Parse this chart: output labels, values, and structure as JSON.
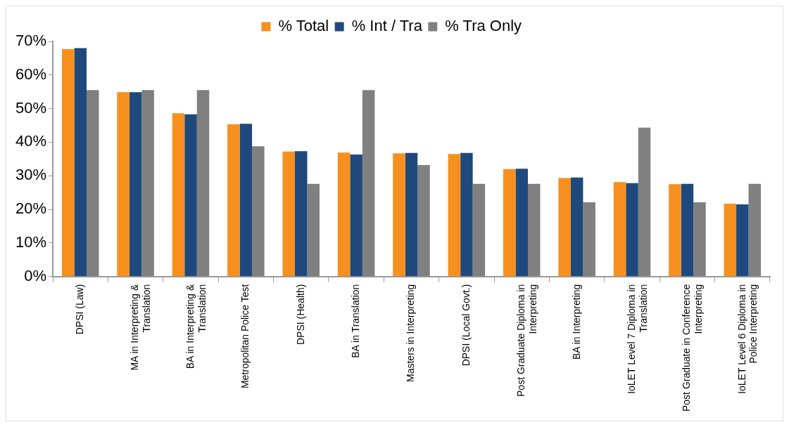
{
  "chart_data": {
    "type": "bar",
    "categories": [
      "DPSI (Law)",
      "MA in Interpreting & Translation",
      "BA in Interpreting & Translation",
      "Metropolitan Police Test",
      "DPSI (Health)",
      "BA in Translation",
      "Masters in Interpreting",
      "DPSI (Local Govt.)",
      "Post Graduate Diploma in Interpreting",
      "BA in Interpreting",
      "IoLET Level 7 Diploma in Translation",
      "Post Graduate in Conference Interpreting",
      "IoLET Level 6 Diploma in Police Interpreting"
    ],
    "series": [
      {
        "name": "% Total",
        "color": "#f7901e",
        "values": [
          67.7,
          54.9,
          48.6,
          45.3,
          37.2,
          36.9,
          36.7,
          36.5,
          32.0,
          29.3,
          28.1,
          27.5,
          21.7
        ]
      },
      {
        "name": "% Int / Tra",
        "color": "#1f497d",
        "values": [
          68.0,
          54.9,
          48.3,
          45.5,
          37.3,
          36.3,
          36.8,
          36.8,
          32.1,
          29.5,
          27.8,
          27.6,
          21.5
        ]
      },
      {
        "name": "% Tra Only",
        "color": "#808080",
        "values": [
          55.5,
          55.5,
          55.5,
          38.8,
          27.6,
          55.5,
          33.2,
          27.6,
          27.6,
          22.1,
          44.3,
          22.1,
          27.6
        ]
      }
    ],
    "ylim": [
      0,
      70
    ],
    "yticks": [
      {
        "value": 0,
        "label": "0%"
      },
      {
        "value": 10,
        "label": "10%"
      },
      {
        "value": 20,
        "label": "20%"
      },
      {
        "value": 30,
        "label": "30%"
      },
      {
        "value": 40,
        "label": "40%"
      },
      {
        "value": 50,
        "label": "50%"
      },
      {
        "value": 60,
        "label": "60%"
      },
      {
        "value": 70,
        "label": "70%"
      }
    ],
    "grid": false,
    "legend": "top"
  }
}
